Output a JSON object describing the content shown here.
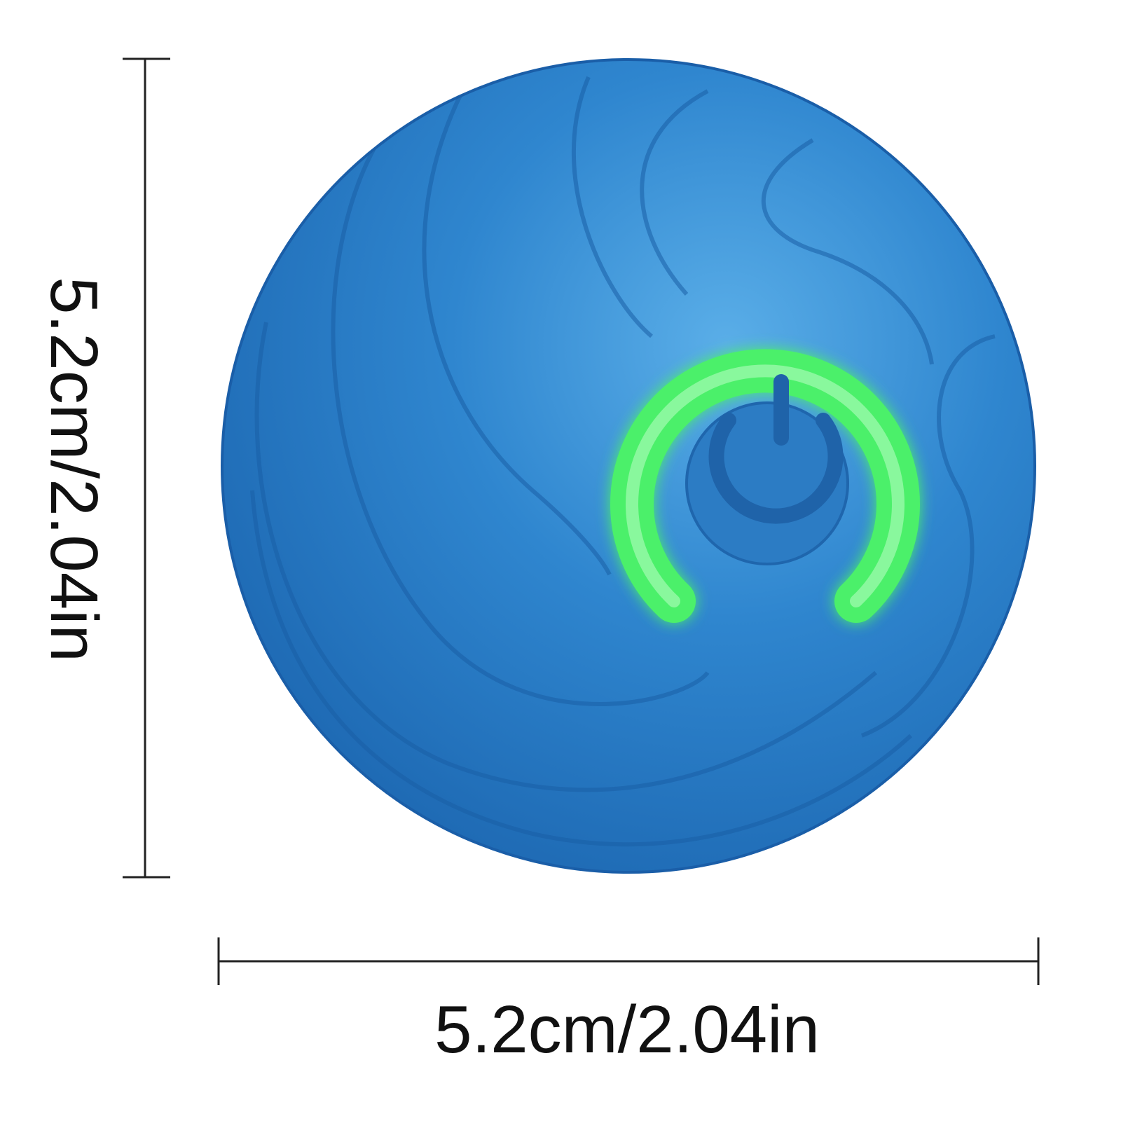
{
  "product": {
    "name_icon": "power-icon",
    "ball_color": "#2f7fc6",
    "light_ring_color": "#4cf06a"
  },
  "dimensions": {
    "width_label": "5.2cm/2.04in",
    "height_label": "5.2cm/2.04in"
  }
}
